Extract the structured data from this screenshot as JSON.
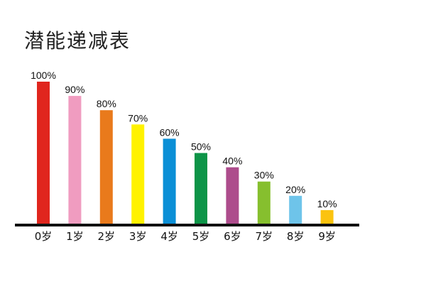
{
  "chart_data": {
    "type": "bar",
    "title": "潜能递减表",
    "xlabel": "",
    "ylabel": "",
    "ylim": [
      0,
      100
    ],
    "grid": false,
    "categories": [
      "0岁",
      "1岁",
      "2岁",
      "3岁",
      "4岁",
      "5岁",
      "6岁",
      "7岁",
      "8岁",
      "9岁"
    ],
    "values": [
      100,
      90,
      80,
      70,
      60,
      50,
      40,
      30,
      20,
      10
    ],
    "data_labels": [
      "100%",
      "90%",
      "80%",
      "70%",
      "60%",
      "50%",
      "40%",
      "30%",
      "20%",
      "10%"
    ],
    "colors": [
      "#e0261e",
      "#f09cc0",
      "#e97a1c",
      "#fff200",
      "#0b8fd6",
      "#0c9447",
      "#ad4c8c",
      "#86bf2e",
      "#6ec4ea",
      "#fbc30f"
    ]
  }
}
